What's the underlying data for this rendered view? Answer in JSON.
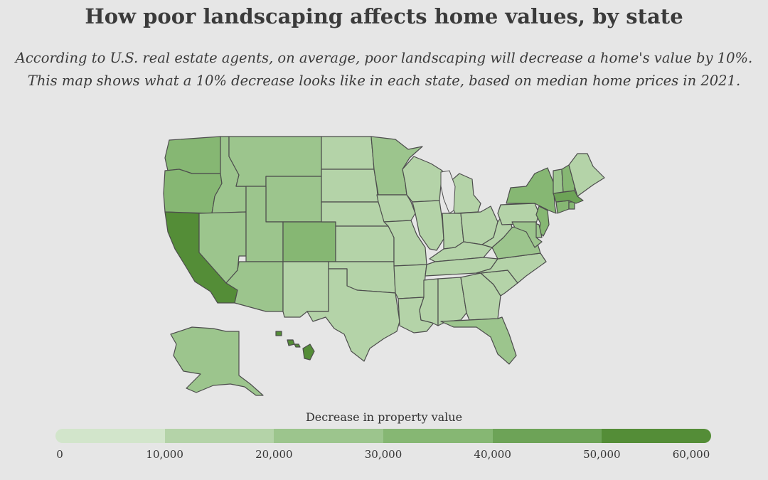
{
  "title": "How poor landscaping affects home values, by state",
  "subtitle_lines": [
    "According to U.S. real estate agents, on average, poor landscaping will decrease a home's value by 10%.",
    "This map shows what a 10% decrease looks like in each state, based on median home prices in 2021."
  ],
  "legend": {
    "title": "Decrease in property value",
    "ticks": [
      "0",
      "10,000",
      "20,000",
      "30,000",
      "40,000",
      "50,000",
      "60,000"
    ],
    "colors": [
      "#d2e5cb",
      "#b4d3a8",
      "#9cc58d",
      "#86b773",
      "#6da357",
      "#548d37"
    ]
  },
  "map_data": {
    "type": "choropleth",
    "bins": [
      0,
      10000,
      20000,
      30000,
      40000,
      50000,
      60000
    ],
    "states": [
      {
        "id": "WA",
        "bin": 3
      },
      {
        "id": "OR",
        "bin": 3
      },
      {
        "id": "CA",
        "bin": 5
      },
      {
        "id": "ID",
        "bin": 2
      },
      {
        "id": "NV",
        "bin": 2
      },
      {
        "id": "MT",
        "bin": 2
      },
      {
        "id": "WY",
        "bin": 2
      },
      {
        "id": "UT",
        "bin": 2
      },
      {
        "id": "AZ",
        "bin": 2
      },
      {
        "id": "CO",
        "bin": 3
      },
      {
        "id": "NM",
        "bin": 1
      },
      {
        "id": "ND",
        "bin": 1
      },
      {
        "id": "SD",
        "bin": 1
      },
      {
        "id": "NE",
        "bin": 1
      },
      {
        "id": "KS",
        "bin": 1
      },
      {
        "id": "OK",
        "bin": 1
      },
      {
        "id": "TX",
        "bin": 1
      },
      {
        "id": "MN",
        "bin": 2
      },
      {
        "id": "IA",
        "bin": 1
      },
      {
        "id": "MO",
        "bin": 1
      },
      {
        "id": "AR",
        "bin": 1
      },
      {
        "id": "LA",
        "bin": 1
      },
      {
        "id": "WI",
        "bin": 1
      },
      {
        "id": "IL",
        "bin": 1
      },
      {
        "id": "MI",
        "bin": 1
      },
      {
        "id": "IN",
        "bin": 1
      },
      {
        "id": "OH",
        "bin": 1
      },
      {
        "id": "KY",
        "bin": 1
      },
      {
        "id": "TN",
        "bin": 1
      },
      {
        "id": "MS",
        "bin": 1
      },
      {
        "id": "AL",
        "bin": 1
      },
      {
        "id": "GA",
        "bin": 1
      },
      {
        "id": "FL",
        "bin": 2
      },
      {
        "id": "SC",
        "bin": 1
      },
      {
        "id": "NC",
        "bin": 1
      },
      {
        "id": "VA",
        "bin": 2
      },
      {
        "id": "WV",
        "bin": 1
      },
      {
        "id": "PA",
        "bin": 1
      },
      {
        "id": "NY",
        "bin": 3
      },
      {
        "id": "NJ",
        "bin": 3
      },
      {
        "id": "DE",
        "bin": 2
      },
      {
        "id": "MD",
        "bin": 2
      },
      {
        "id": "CT",
        "bin": 3
      },
      {
        "id": "RI",
        "bin": 3
      },
      {
        "id": "MA",
        "bin": 4
      },
      {
        "id": "VT",
        "bin": 2
      },
      {
        "id": "NH",
        "bin": 3
      },
      {
        "id": "ME",
        "bin": 1
      },
      {
        "id": "AK",
        "bin": 2
      },
      {
        "id": "HI",
        "bin": 5
      }
    ]
  }
}
